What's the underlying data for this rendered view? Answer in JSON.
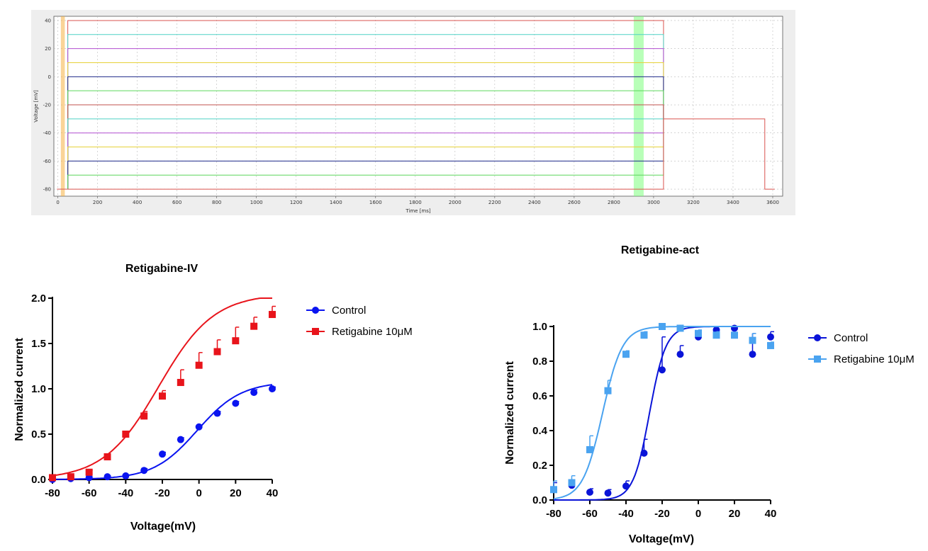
{
  "chart_data": [
    {
      "id": "protocol",
      "type": "line",
      "title": "",
      "xlabel": "Time [ms]",
      "ylabel": "Voltage [mV]",
      "xlim": [
        -20,
        3650
      ],
      "ylim": [
        -85,
        43
      ],
      "xticks": [
        0,
        200,
        400,
        600,
        800,
        1000,
        1200,
        1400,
        1600,
        1800,
        2000,
        2200,
        2400,
        2600,
        2800,
        3000,
        3200,
        3400,
        3600
      ],
      "yticks": [
        -80,
        -60,
        -40,
        -20,
        0,
        20,
        40
      ],
      "grid": true,
      "step_start_ms": 50,
      "step_end_ms": 3050,
      "tail_voltage_mv": -30,
      "tail_end_ms": 3560,
      "holding_mv": -80,
      "protocol_end_ms": 3610,
      "steps": [
        {
          "v": 40,
          "color": "#d9534f"
        },
        {
          "v": 30,
          "color": "#4fd1c5"
        },
        {
          "v": 20,
          "color": "#b24fd1"
        },
        {
          "v": 10,
          "color": "#e6d23a"
        },
        {
          "v": 0,
          "color": "#1f2a8a"
        },
        {
          "v": -10,
          "color": "#5cd65c"
        },
        {
          "v": -20,
          "color": "#c0504d"
        },
        {
          "v": -30,
          "color": "#4fd1c5"
        },
        {
          "v": -40,
          "color": "#b24fd1"
        },
        {
          "v": -50,
          "color": "#e6d23a"
        },
        {
          "v": -60,
          "color": "#1f2a8a"
        },
        {
          "v": -70,
          "color": "#5cd65c"
        },
        {
          "v": -80,
          "color": "#d9534f"
        }
      ],
      "cursor_bands": [
        {
          "x0": 15,
          "x1": 35,
          "color": "#f5b041"
        },
        {
          "x0": 2900,
          "x1": 2950,
          "color": "#7dff7d"
        }
      ]
    },
    {
      "id": "iv",
      "type": "scatter",
      "title": "Retigabine-IV",
      "xlabel": "Voltage(mV)",
      "ylabel": "Normalized current",
      "xlim": [
        -80,
        40
      ],
      "ylim": [
        0,
        2.0
      ],
      "xticks": [
        -80,
        -60,
        -40,
        -20,
        0,
        20,
        40
      ],
      "yticks": [
        "0.0",
        "0.5",
        "1.0",
        "1.5",
        "2.0"
      ],
      "legend": "right",
      "x": [
        -80,
        -70,
        -60,
        -50,
        -40,
        -30,
        -20,
        -10,
        0,
        10,
        20,
        30,
        40
      ],
      "series": [
        {
          "name": "Control",
          "color": "#0a14f0",
          "marker": "circle",
          "values": [
            0.0,
            0.01,
            0.02,
            0.03,
            0.04,
            0.1,
            0.28,
            0.44,
            0.58,
            0.73,
            0.84,
            0.96,
            1.0
          ],
          "err": [
            0.01,
            0.01,
            0.01,
            0.01,
            0.01,
            0.02,
            0.02,
            0.02,
            0.02,
            0.02,
            0.02,
            0.03,
            0.02
          ],
          "fit": {
            "top": 1.08,
            "v50": -1,
            "k": 12
          }
        },
        {
          "name": "Retigabine  10μM",
          "color": "#e8141b",
          "marker": "square",
          "values": [
            0.02,
            0.03,
            0.08,
            0.25,
            0.5,
            0.7,
            0.92,
            1.07,
            1.26,
            1.41,
            1.53,
            1.69,
            1.82
          ],
          "err": [
            0.01,
            0.01,
            0.02,
            0.03,
            0.03,
            0.05,
            0.06,
            0.14,
            0.14,
            0.13,
            0.15,
            0.1,
            0.09
          ],
          "fit": {
            "top": 2.05,
            "v50": -22,
            "k": 15
          }
        }
      ]
    },
    {
      "id": "act",
      "type": "scatter",
      "title": "Retigabine-act",
      "xlabel": "Voltage(mV)",
      "ylabel": "Normalized current",
      "xlim": [
        -80,
        40
      ],
      "ylim": [
        0,
        1.0
      ],
      "xticks": [
        -80,
        -60,
        -40,
        -20,
        0,
        20,
        40
      ],
      "yticks": [
        "0.0",
        "0.2",
        "0.4",
        "0.6",
        "0.8",
        "1.0"
      ],
      "legend": "right",
      "x": [
        -80,
        -70,
        -60,
        -50,
        -40,
        -30,
        -20,
        -10,
        0,
        10,
        20,
        30,
        40
      ],
      "series": [
        {
          "name": "Control",
          "color": "#0a14d8",
          "marker": "circle",
          "values": [
            0.06,
            0.085,
            0.045,
            0.04,
            0.08,
            0.27,
            0.75,
            0.84,
            0.94,
            0.98,
            0.99,
            0.84,
            0.94
          ],
          "err": [
            0.04,
            0.03,
            0.02,
            0.02,
            0.03,
            0.08,
            0.19,
            0.05,
            0.03,
            0.02,
            0.01,
            0.12,
            0.03
          ],
          "fit": {
            "v50": -27,
            "k": 4.5
          }
        },
        {
          "name": "Retigabine 10μM",
          "color": "#4aa3f0",
          "marker": "square",
          "values": [
            0.06,
            0.1,
            0.29,
            0.63,
            0.84,
            0.95,
            1.0,
            0.99,
            0.96,
            0.95,
            0.95,
            0.92,
            0.89
          ],
          "err": [
            0.05,
            0.04,
            0.08,
            0.06,
            0.02,
            0.02,
            0.01,
            0.01,
            0.02,
            0.02,
            0.01,
            0.04,
            0.02
          ],
          "fit": {
            "v50": -53,
            "k": 5.5
          }
        }
      ]
    }
  ]
}
